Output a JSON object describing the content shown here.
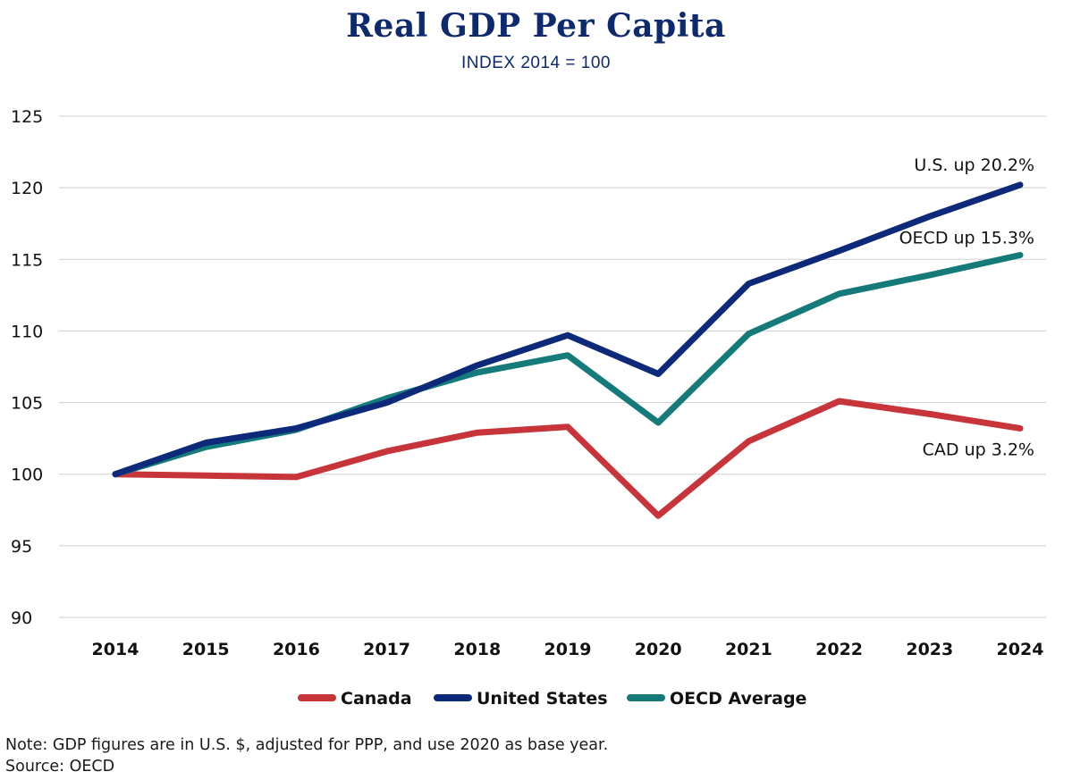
{
  "chart_data": {
    "type": "line",
    "title": "Real GDP Per Capita",
    "subtitle": "INDEX 2014 = 100",
    "xlabel": "",
    "ylabel": "",
    "categories": [
      "2014",
      "2015",
      "2016",
      "2017",
      "2018",
      "2019",
      "2020",
      "2021",
      "2022",
      "2023",
      "2024"
    ],
    "ylim": [
      90,
      125
    ],
    "yticks": [
      90,
      95,
      100,
      105,
      110,
      115,
      120,
      125
    ],
    "grid": true,
    "legend_position": "bottom-center",
    "series": [
      {
        "name": "Canada",
        "color": "#c7353a",
        "values": [
          100,
          99.9,
          99.8,
          101.6,
          102.9,
          103.3,
          97.1,
          102.3,
          105.1,
          104.2,
          103.2
        ]
      },
      {
        "name": "United States",
        "color": "#0d2a7a",
        "values": [
          100,
          102.2,
          103.2,
          105.0,
          107.6,
          109.7,
          107.0,
          113.3,
          115.6,
          118.0,
          120.2
        ]
      },
      {
        "name": "OECD Average",
        "color": "#157a7a",
        "values": [
          100,
          101.9,
          103.1,
          105.3,
          107.1,
          108.3,
          103.6,
          109.8,
          112.6,
          113.9,
          115.3
        ]
      }
    ],
    "annotations": [
      {
        "series": "United States",
        "text": "U.S. up 20.2%"
      },
      {
        "series": "OECD Average",
        "text": "OECD up 15.3%"
      },
      {
        "series": "Canada",
        "text": "CAD up 3.2%"
      }
    ]
  },
  "notes": {
    "note": "Note: GDP figures are in U.S. $, adjusted for PPP, and use 2020 as base year.",
    "source": "Source: OECD"
  }
}
